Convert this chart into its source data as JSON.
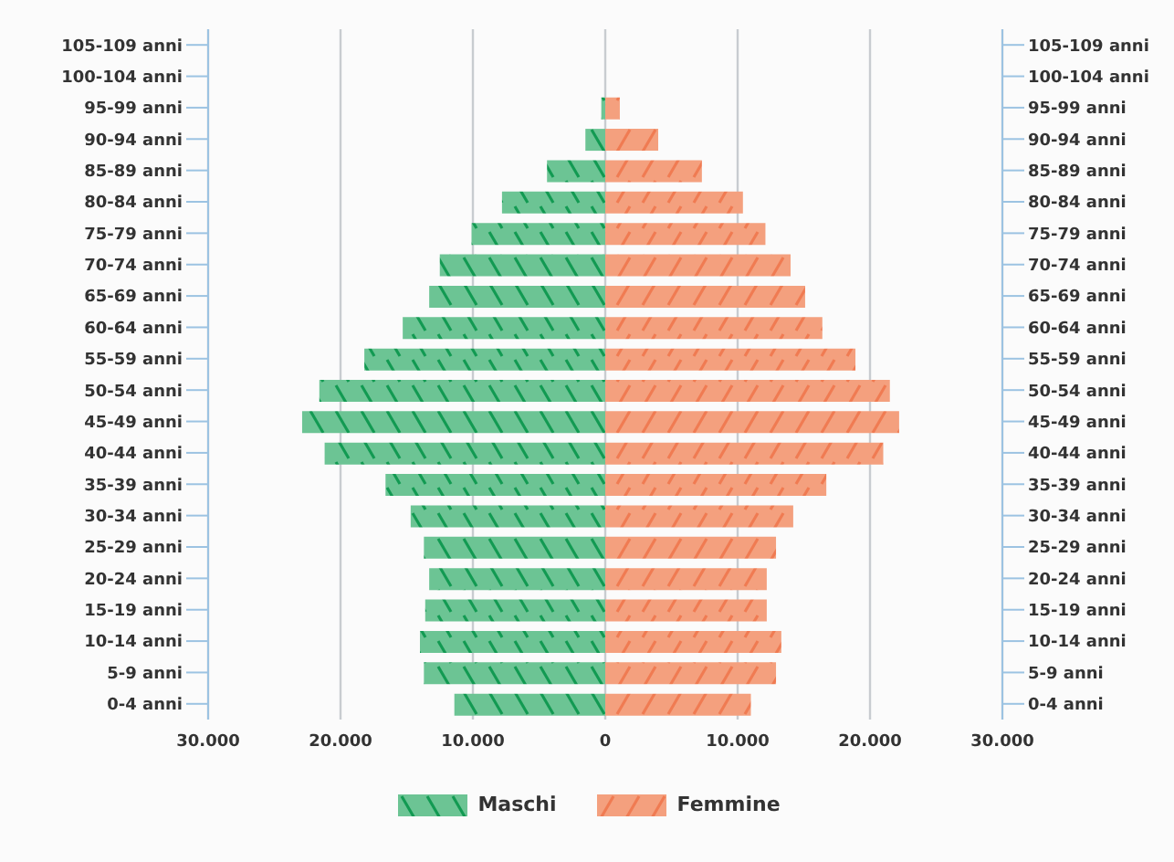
{
  "chart_data": {
    "type": "bar",
    "orientation": "horizontal",
    "stacked": true,
    "categories": [
      "105-109 anni",
      "100-104 anni",
      "95-99 anni",
      "90-94 anni",
      "85-89 anni",
      "80-84 anni",
      "75-79 anni",
      "70-74 anni",
      "65-69 anni",
      "60-64 anni",
      "55-59 anni",
      "50-54 anni",
      "45-49 anni",
      "40-44 anni",
      "35-39 anni",
      "30-34 anni",
      "25-29 anni",
      "20-24 anni",
      "15-19 anni",
      "10-14 anni",
      "5-9 anni",
      "0-4 anni"
    ],
    "series": [
      {
        "name": "Maschi",
        "color": "#6cc494",
        "values": [
          0,
          0,
          -300,
          -1500,
          -4400,
          -7800,
          -10100,
          -12500,
          -13300,
          -15300,
          -18200,
          -21600,
          -22900,
          -21200,
          -16600,
          -14700,
          -13700,
          -13300,
          -13600,
          -14000,
          -13700,
          -11400
        ]
      },
      {
        "name": "Femmine",
        "color": "#f4a07e",
        "values": [
          0,
          0,
          1100,
          4000,
          7300,
          10400,
          12100,
          14000,
          15100,
          16400,
          18900,
          21500,
          22200,
          21000,
          16700,
          14200,
          12900,
          12200,
          12200,
          13300,
          12900,
          11000
        ]
      }
    ],
    "xlim": [
      -30000,
      30000
    ],
    "xticks": [
      {
        "value": -30000,
        "label": "30.000"
      },
      {
        "value": -20000,
        "label": "20.000"
      },
      {
        "value": -10000,
        "label": "10.000"
      },
      0,
      {
        "value": 10000,
        "label": "10.000"
      },
      {
        "value": 20000,
        "label": "20.000"
      },
      {
        "value": 30000,
        "label": "30.000"
      }
    ],
    "grid": "x",
    "legend": "bottom"
  }
}
